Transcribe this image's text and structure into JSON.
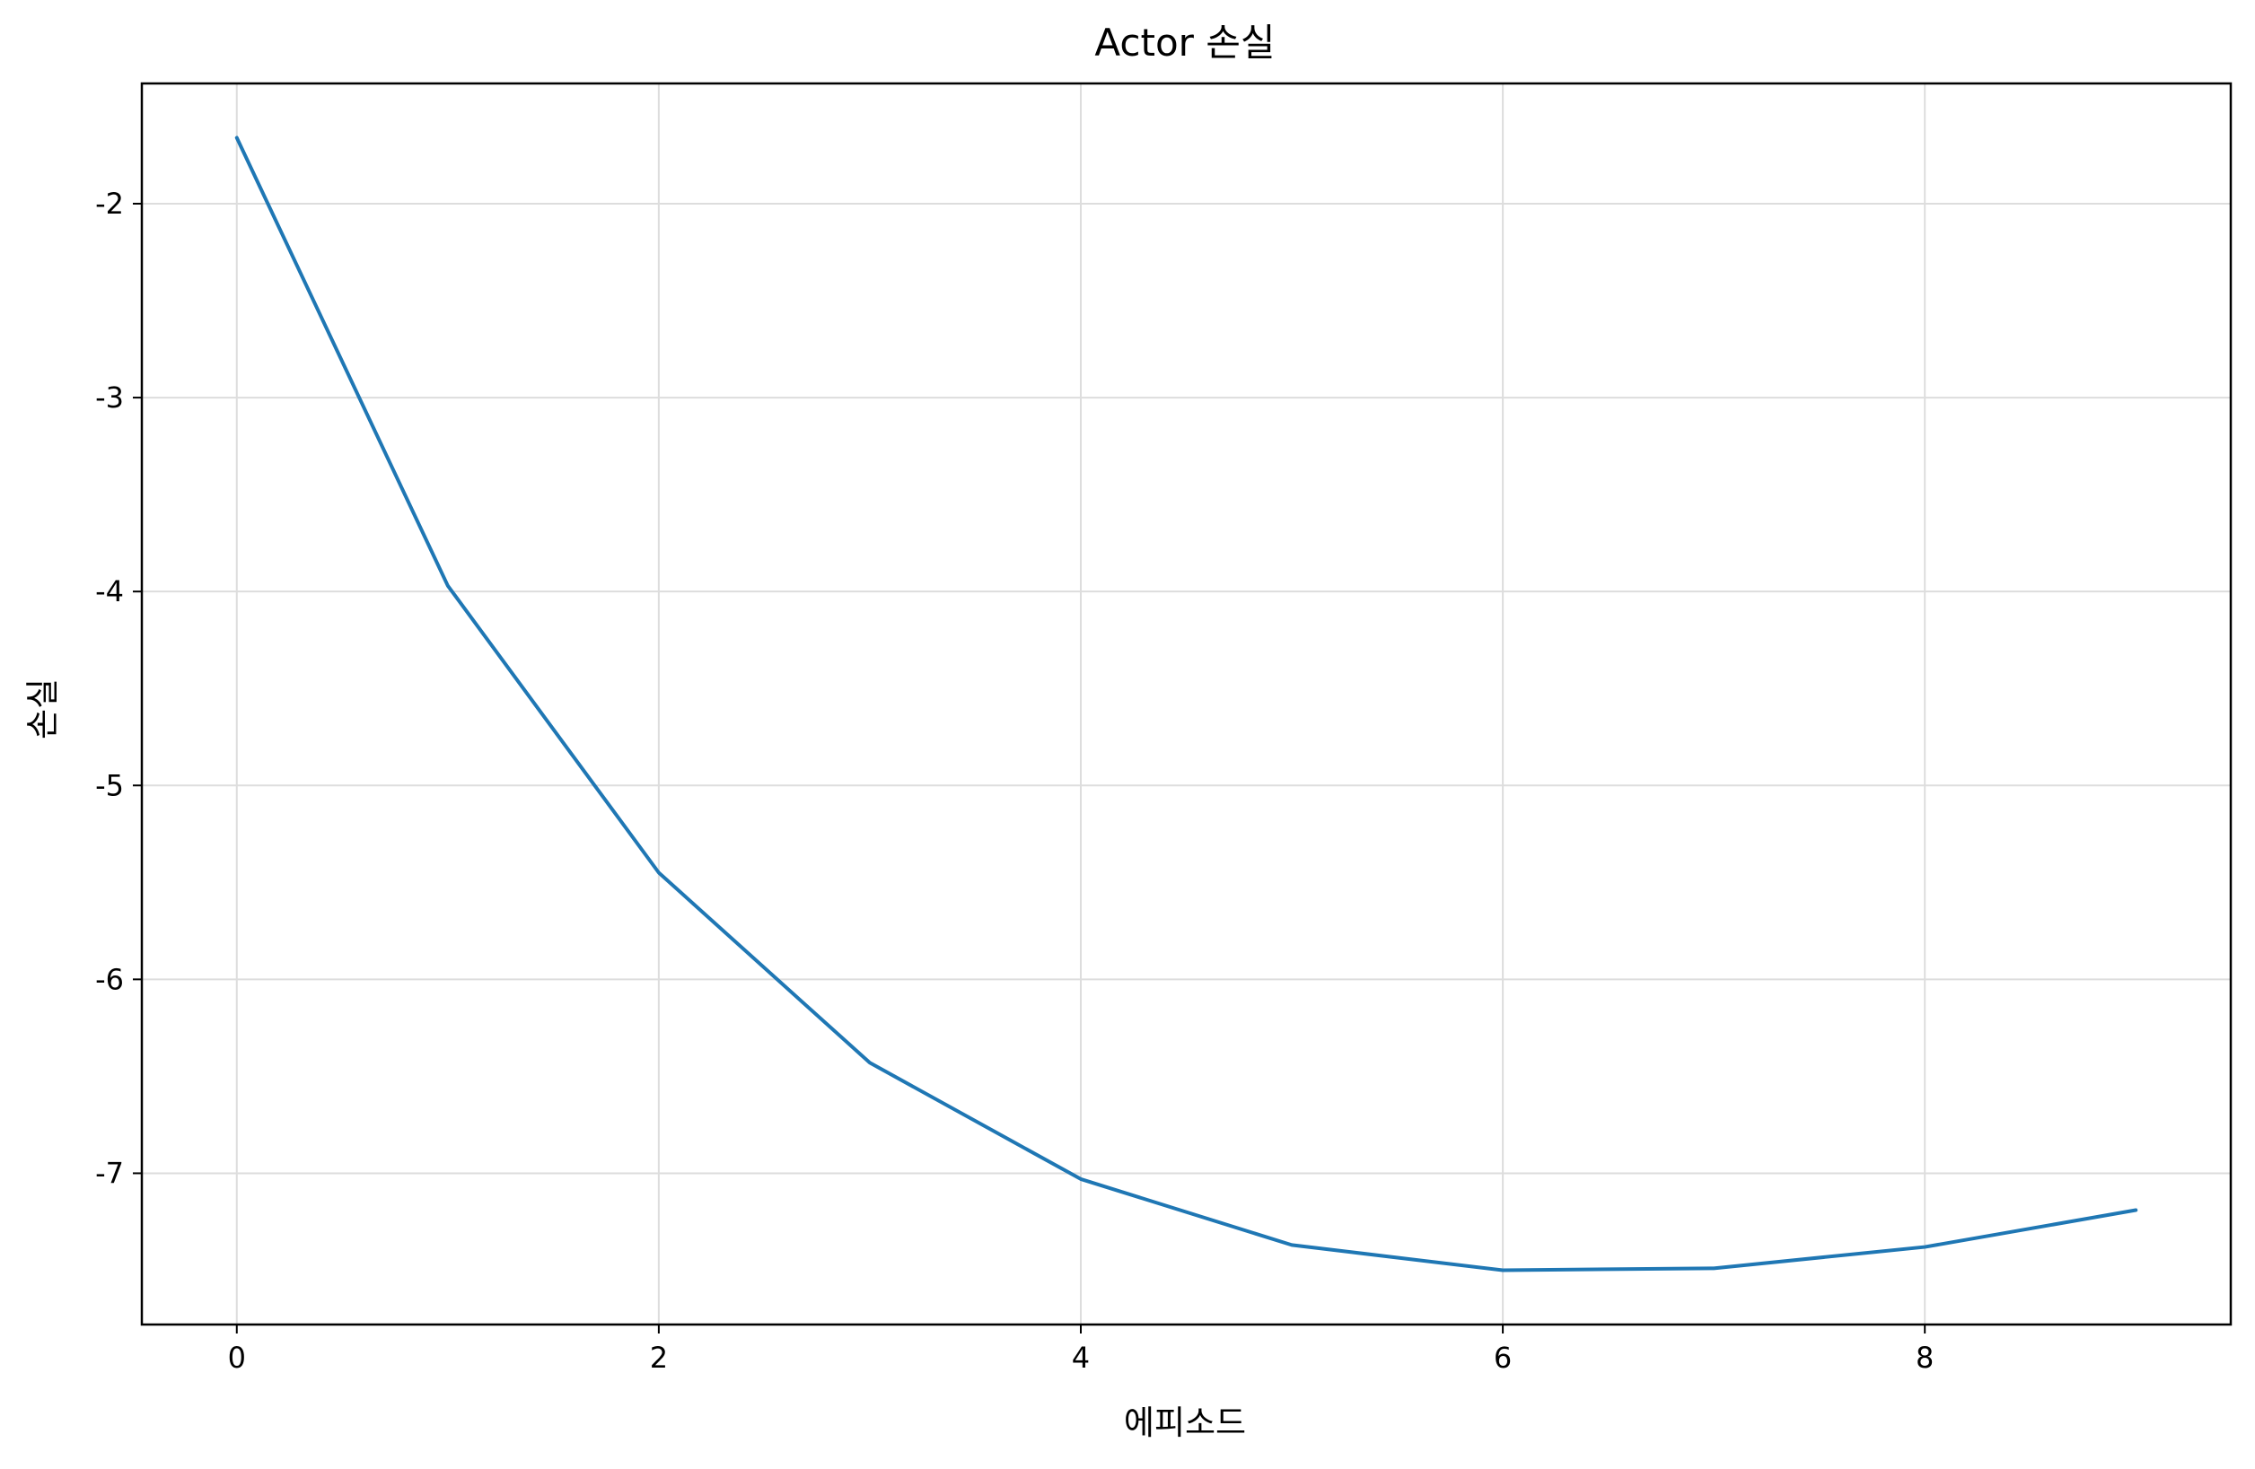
{
  "chart_data": {
    "type": "line",
    "title": "Actor 손실",
    "xlabel": "에피소드",
    "ylabel": "손실",
    "xlim": [
      -0.45,
      9.45
    ],
    "ylim": [
      -7.78,
      -1.38
    ],
    "x": [
      0,
      1,
      2,
      3,
      4,
      5,
      6,
      7,
      8,
      9
    ],
    "series": [
      {
        "values": [
          -1.66,
          -3.97,
          -5.45,
          -6.43,
          -7.03,
          -7.37,
          -7.5,
          -7.49,
          -7.38,
          -7.19
        ]
      }
    ],
    "xticks": [
      0,
      2,
      4,
      6,
      8
    ],
    "xtick_labels": [
      "0",
      "2",
      "4",
      "6",
      "8"
    ],
    "yticks": [
      -2,
      -3,
      -4,
      -5,
      -6,
      -7
    ],
    "ytick_labels": [
      "-2",
      "-3",
      "-4",
      "-5",
      "-6",
      "-7"
    ],
    "grid": true,
    "line_color": "#1f77b4",
    "grid_color": "#dddddd"
  }
}
